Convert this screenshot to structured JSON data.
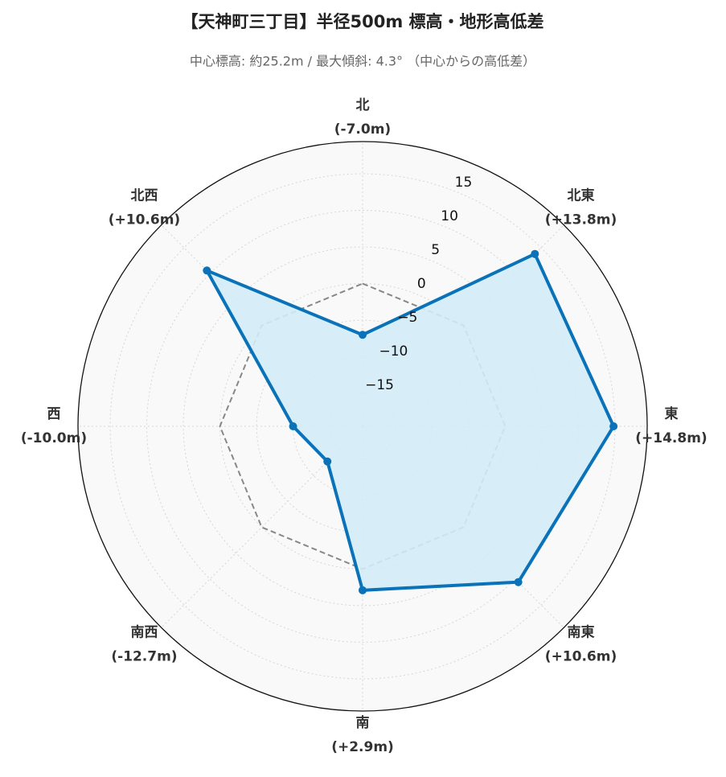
{
  "chart_data": {
    "type": "radar",
    "title": "【天神町三丁目】半径500m 標高・地形高低差",
    "subtitle": "中心標高: 約25.2m / 最大傾斜: 4.3° （中心からの高低差）",
    "categories": [
      "北",
      "北東",
      "東",
      "南東",
      "南",
      "南西",
      "西",
      "北西"
    ],
    "values": [
      -7.0,
      13.8,
      14.8,
      10.6,
      2.9,
      -12.7,
      -10.0,
      10.6
    ],
    "value_labels": [
      "(-7.0m)",
      "(+13.8m)",
      "(+14.8m)",
      "(+10.6m)",
      "(+2.9m)",
      "(-12.7m)",
      "(-10.0m)",
      "(+10.6m)"
    ],
    "color": "#0a72b8",
    "fill_color": "#d3ecf8",
    "ylim": [
      -19.5,
      19.4
    ],
    "yticks": [
      {
        "value": -15,
        "label": "−15"
      },
      {
        "value": -10,
        "label": "−10"
      },
      {
        "value": -5,
        "label": "−5"
      },
      0,
      5,
      10,
      15
    ],
    "reference_line": {
      "value": 0,
      "color": "#888888"
    },
    "grid": true
  }
}
